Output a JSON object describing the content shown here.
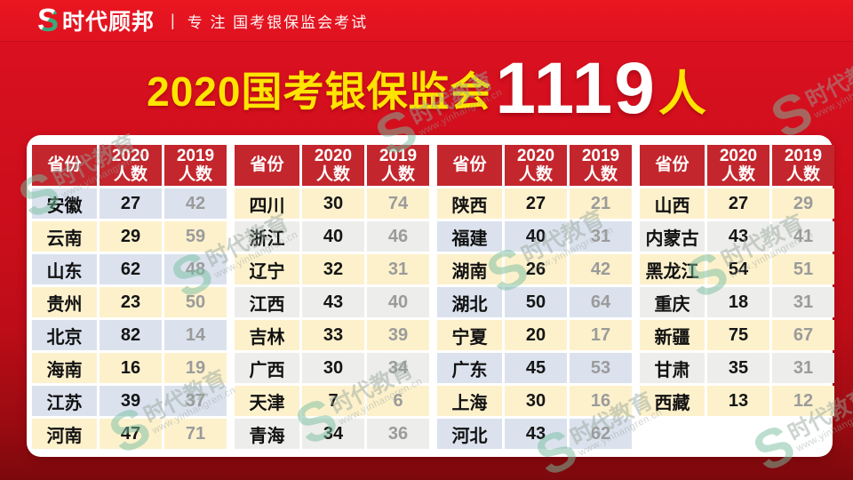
{
  "brand": {
    "logo": "S",
    "name": "时代顾邦",
    "divider": "|",
    "tagline": "专 注 国考银保监会考试"
  },
  "title": {
    "prefix": "2020国考银保监会",
    "count": "1119",
    "unit": "人"
  },
  "columns": {
    "province": "省份",
    "y2020": "2020\n人数",
    "y2019": "2019\n人数"
  },
  "colors": {
    "header_red": "#c3262d",
    "band_blue": "#dbe2ee",
    "band_cream": "#fdf1cc",
    "band_gray": "#ededeb",
    "title_yellow": "#ffe400",
    "background_red": "#cc0e1b",
    "num_2019_gray": "#9b9b9b"
  },
  "watermark": {
    "logo": "S",
    "brand": "时代教育",
    "url": "www.yinhangren.cn"
  },
  "tables": [
    {
      "banding": [
        "band_blue",
        "band_cream"
      ],
      "rows": [
        [
          "安徽",
          "27",
          "42"
        ],
        [
          "云南",
          "29",
          "59"
        ],
        [
          "山东",
          "62",
          "48"
        ],
        [
          "贵州",
          "23",
          "50"
        ],
        [
          "北京",
          "82",
          "14"
        ],
        [
          "海南",
          "16",
          "19"
        ],
        [
          "江苏",
          "39",
          "37"
        ],
        [
          "河南",
          "47",
          "71"
        ]
      ]
    },
    {
      "banding": [
        "band_cream",
        "band_gray"
      ],
      "rows": [
        [
          "四川",
          "30",
          "74"
        ],
        [
          "浙江",
          "40",
          "46"
        ],
        [
          "辽宁",
          "32",
          "31"
        ],
        [
          "江西",
          "43",
          "40"
        ],
        [
          "吉林",
          "33",
          "39"
        ],
        [
          "广西",
          "30",
          "34"
        ],
        [
          "天津",
          "7",
          "6"
        ],
        [
          "青海",
          "34",
          "36"
        ]
      ]
    },
    {
      "banding": [
        "band_cream",
        "band_blue"
      ],
      "rows": [
        [
          "陕西",
          "27",
          "21"
        ],
        [
          "福建",
          "40",
          "31"
        ],
        [
          "湖南",
          "26",
          "42"
        ],
        [
          "湖北",
          "50",
          "64"
        ],
        [
          "宁夏",
          "20",
          "17"
        ],
        [
          "广东",
          "45",
          "53"
        ],
        [
          "上海",
          "30",
          "16"
        ],
        [
          "河北",
          "43",
          "62"
        ]
      ]
    },
    {
      "banding": [
        "band_cream",
        "band_gray"
      ],
      "rows": [
        [
          "山西",
          "27",
          "29"
        ],
        [
          "内蒙古",
          "43",
          "41"
        ],
        [
          "黑龙江",
          "54",
          "51"
        ],
        [
          "重庆",
          "18",
          "31"
        ],
        [
          "新疆",
          "75",
          "67"
        ],
        [
          "甘肃",
          "35",
          "31"
        ],
        [
          "西藏",
          "13",
          "12"
        ]
      ]
    }
  ]
}
